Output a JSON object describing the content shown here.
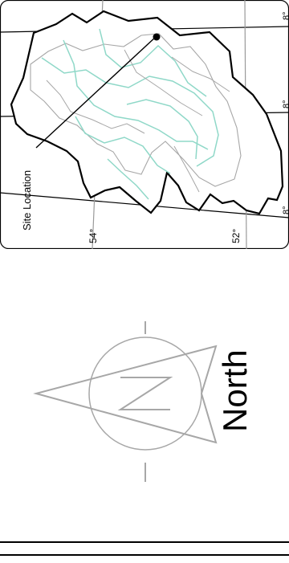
{
  "map": {
    "site_label": "Site Location",
    "lat_left": "54°",
    "lat_right": "52°",
    "edge_label_1": "8°",
    "edge_label_2": "8°",
    "edge_label_3": "8°"
  },
  "compass": {
    "north_label": "North",
    "n_letter": "N"
  },
  "colors": {
    "outline": "#000000",
    "district_lines": "#8fd8c8",
    "road_lines": "#a7a7a7",
    "frame": "#000000",
    "compass_gray": "#a7a7a7"
  }
}
